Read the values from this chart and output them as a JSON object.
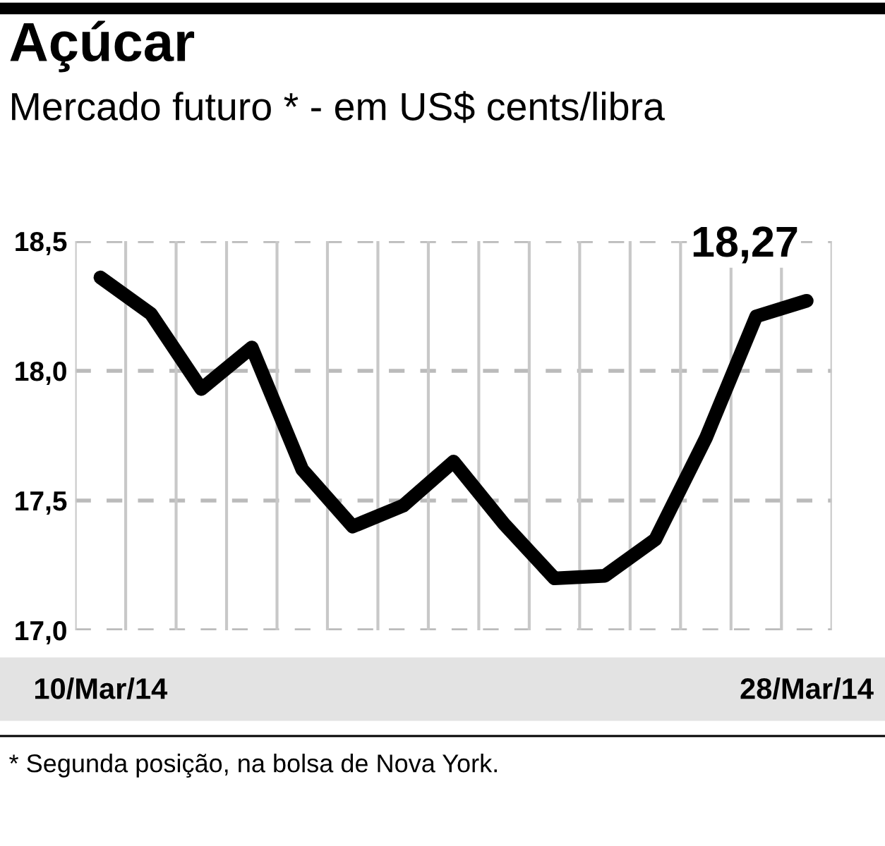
{
  "chart_data": {
    "type": "line",
    "title": "Açúcar",
    "subtitle": "Mercado futuro * - em US$ cents/libra",
    "categories": [
      "10/Mar/14",
      null,
      null,
      null,
      null,
      null,
      null,
      null,
      null,
      null,
      null,
      null,
      null,
      null,
      "28/Mar/14"
    ],
    "series": [
      {
        "color": "#000000",
        "values": [
          18.36,
          18.22,
          17.93,
          18.09,
          17.62,
          17.4,
          17.48,
          17.65,
          17.41,
          17.2,
          17.21,
          17.35,
          17.74,
          18.21,
          18.27
        ],
        "value_labels": [
          null,
          null,
          null,
          null,
          null,
          null,
          null,
          null,
          null,
          null,
          null,
          null,
          null,
          null,
          "18,27"
        ]
      }
    ],
    "ylim": [
      17.0,
      18.5
    ],
    "yticks": [
      {
        "value": 17.0,
        "label": "17,0"
      },
      {
        "value": 17.5,
        "label": "17,5"
      },
      {
        "value": 18.0,
        "label": "18,0"
      },
      {
        "value": 18.5,
        "label": "18,5"
      }
    ],
    "grid": true,
    "legend": false,
    "marker": "none",
    "line_style": "solid",
    "annotations": [
      "* Segunda posição, na bolsa de Nova York."
    ]
  }
}
